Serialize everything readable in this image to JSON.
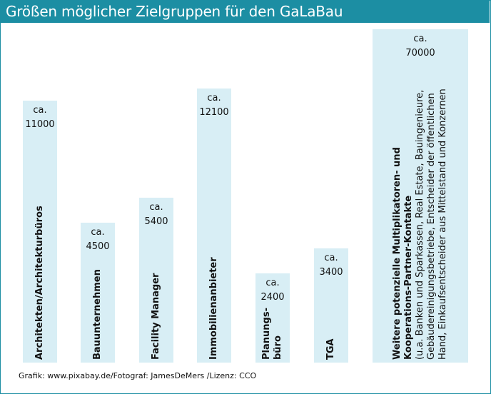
{
  "title": "Größen möglicher Zielgruppen für den GaLaBau",
  "source": "Grafik: www.pixabay.de/Fotograf: JamesDeMers /Lizenz: CCO",
  "colors": {
    "accent": "#1c8ea3",
    "bar": "#d8eef5"
  },
  "chart_data": {
    "type": "bar",
    "title": "Größen möglicher Zielgruppen für den GaLaBau",
    "xlabel": "",
    "ylabel": "",
    "ylim": [
      0,
      70000
    ],
    "grid": false,
    "legend": "none",
    "categories": [
      "Architekten/Architekturbüros",
      "Bauunternehmen",
      "Facility Manager",
      "Immobilienanbieter",
      "Planungs-büro",
      "TGA",
      "Weitere potenzielle Multiplikatoren- und Kooperations-Partner-Kontakte"
    ],
    "values": [
      11000,
      4500,
      5400,
      12100,
      2400,
      3400,
      70000
    ],
    "value_prefix": "ca.",
    "value_labels": [
      "11000",
      "4500",
      "5400",
      "12100",
      "2400",
      "3400",
      "70000"
    ],
    "category_lines": [
      [
        "Architekten/Architekturbüros"
      ],
      [
        "Bauunternehmen"
      ],
      [
        "Facility Manager"
      ],
      [
        "Immobilienanbieter"
      ],
      [
        "Planungs-",
        "büro"
      ],
      [
        "TGA"
      ],
      [
        "Weitere potenzielle Multiplikatoren- und",
        "Kooperations-Partner-Kontakte"
      ]
    ],
    "subnote_lines": [
      "(u.a. Banken und Sparkassen, Real Estate, Bauingenieure,",
      "Gebäudereinigungsbetriebe, Entscheider der öffentlichen",
      "Hand, Einkaufsentscheider aus Mittelstand und Konzernen"
    ]
  }
}
